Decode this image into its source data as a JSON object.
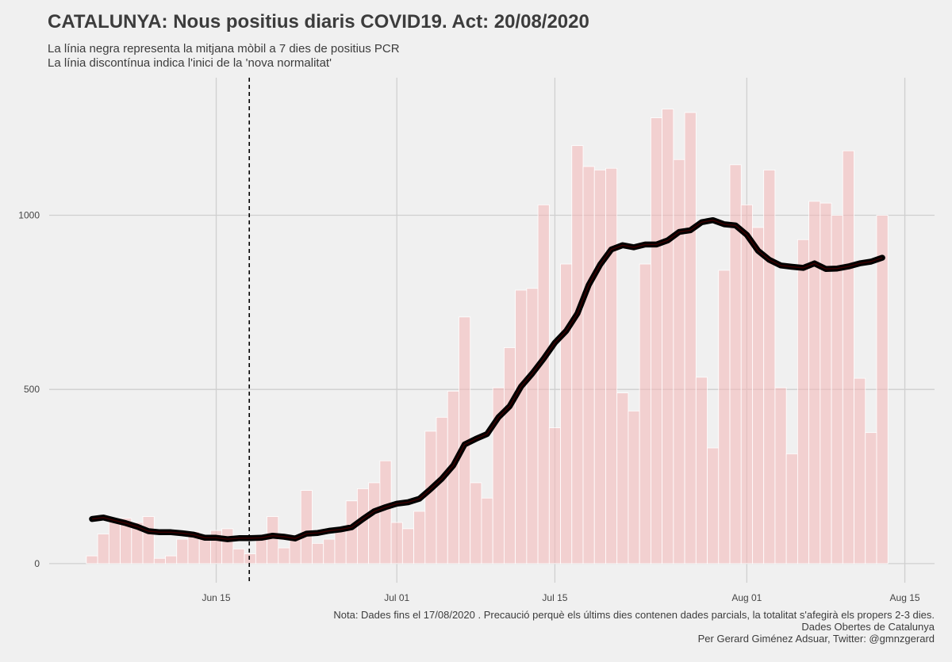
{
  "chart_data": {
    "type": "bar",
    "title": "CATALUNYA: Nous positius diaris COVID19. Act: 20/08/2020",
    "subtitle": [
      "La línia negra representa la mitjana mòbil a 7 dies de positius PCR",
      "La línia discontínua indica l'inici de la 'nova normalitat'"
    ],
    "caption": [
      "Nota: Dades fins el 17/08/2020 . Precaució perquè els últims dies contenen dades parcials, la totalitat s'afegirà els propers 2-3 dies.",
      "Dades Obertes de Catalunya",
      "Per Gerard Giménez Adsuar, Twitter: @gmnzgerard"
    ],
    "x_axis": {
      "type": "date",
      "start_date": "2020-06-04",
      "end_date": "2020-08-17",
      "tick_labels": [
        "Jun 15",
        "Jul 01",
        "Jul 15",
        "Aug 01",
        "Aug 15"
      ],
      "tick_dates": [
        "2020-06-15",
        "2020-07-01",
        "2020-07-15",
        "2020-08-01",
        "2020-08-15"
      ]
    },
    "y_axis": {
      "ticks": [
        0,
        500,
        1000
      ],
      "ylim": [
        -55,
        1395
      ]
    },
    "grid": true,
    "vline_date": "2020-06-18",
    "colors": {
      "bars": "#f4b6b6",
      "bar_stroke": "#ffffff",
      "line": "#000000",
      "line_tint": "#7a0000",
      "vline": "#000000",
      "grid": "#cfcfcf",
      "background": "#f0f0f0"
    },
    "bars": [
      22,
      85,
      120,
      130,
      118,
      135,
      15,
      22,
      70,
      92,
      75,
      95,
      100,
      42,
      28,
      70,
      135,
      45,
      80,
      210,
      58,
      70,
      100,
      180,
      215,
      232,
      295,
      118,
      100,
      150,
      380,
      420,
      495,
      708,
      232,
      188,
      505,
      620,
      785,
      790,
      1030,
      390,
      860,
      1200,
      1140,
      1130,
      1135,
      490,
      438,
      860,
      1280,
      1305,
      1160,
      1295,
      535,
      332,
      842,
      1145,
      1030,
      965,
      1130,
      505,
      315,
      930,
      1040,
      1035,
      1000,
      1185,
      532,
      376,
      1000
    ],
    "moving_average": [
      128,
      132,
      124,
      116,
      106,
      93,
      90,
      90,
      87,
      83,
      74,
      74,
      70,
      73,
      73,
      74,
      80,
      77,
      72,
      86,
      88,
      94,
      98,
      104,
      128,
      150,
      162,
      172,
      176,
      186,
      214,
      244,
      282,
      342,
      358,
      372,
      420,
      452,
      508,
      546,
      588,
      634,
      668,
      718,
      800,
      858,
      902,
      914,
      908,
      916,
      916,
      928,
      952,
      957,
      980,
      986,
      974,
      971,
      944,
      898,
      872,
      856,
      852,
      849,
      862,
      846,
      847,
      853,
      862,
      867,
      878
    ]
  }
}
